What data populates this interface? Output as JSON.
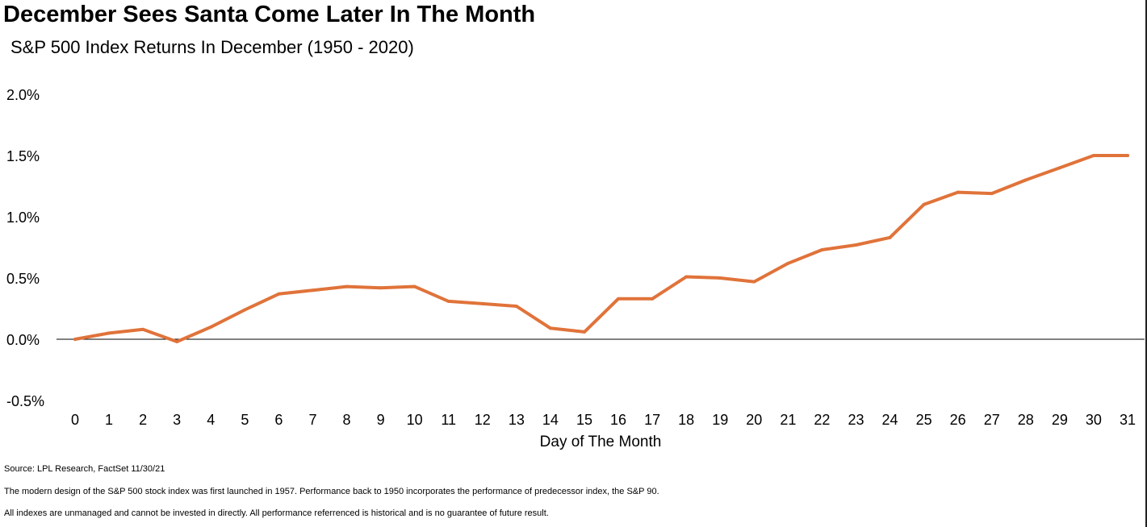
{
  "chart_data": {
    "type": "line",
    "title": "December Sees Santa Come Later In The Month",
    "subtitle": "S&P 500 Index Returns In December (1950 - 2020)",
    "xlabel": "Day of The Month",
    "ylabel": "",
    "x": [
      0,
      1,
      2,
      3,
      4,
      5,
      6,
      7,
      8,
      9,
      10,
      11,
      12,
      13,
      14,
      15,
      16,
      17,
      18,
      19,
      20,
      21,
      22,
      23,
      24,
      25,
      26,
      27,
      28,
      29,
      30,
      31
    ],
    "series": [
      {
        "name": "",
        "color": "#E0733A",
        "values": [
          0.0,
          0.05,
          0.08,
          -0.02,
          0.1,
          0.24,
          0.37,
          0.4,
          0.43,
          0.42,
          0.43,
          0.31,
          0.29,
          0.27,
          0.09,
          0.06,
          0.33,
          0.33,
          0.51,
          0.5,
          0.47,
          0.62,
          0.73,
          0.77,
          0.83,
          1.1,
          1.2,
          1.19,
          1.3,
          1.4,
          1.5,
          1.5
        ]
      }
    ],
    "ylim": [
      -0.5,
      2.0
    ],
    "yticks": [
      2.0,
      1.5,
      1.0,
      0.5,
      0.0,
      -0.5
    ],
    "ytick_labels": [
      "2.0%",
      "1.5%",
      "1.0%",
      "0.5%",
      "0.0%",
      "-0.5%"
    ],
    "xtick_labels": [
      "0",
      "1",
      "2",
      "3",
      "4",
      "5",
      "6",
      "7",
      "8",
      "9",
      "10",
      "11",
      "12",
      "13",
      "14",
      "15",
      "16",
      "17",
      "18",
      "19",
      "20",
      "21",
      "22",
      "23",
      "24",
      "25",
      "26",
      "27",
      "28",
      "29",
      "30",
      "31"
    ],
    "grid": false,
    "zero_line": true
  },
  "footnotes": {
    "source": "Source: LPL Research, FactSet 11/30/21",
    "note1": "The modern design of the S&P 500 stock index was first launched in 1957. Performance back to 1950 incorporates the performance of predecessor index, the S&P 90.",
    "note2": "All indexes are unmanaged and cannot be invested in directly. All performance referrenced is historical and is no guarantee of future result."
  }
}
